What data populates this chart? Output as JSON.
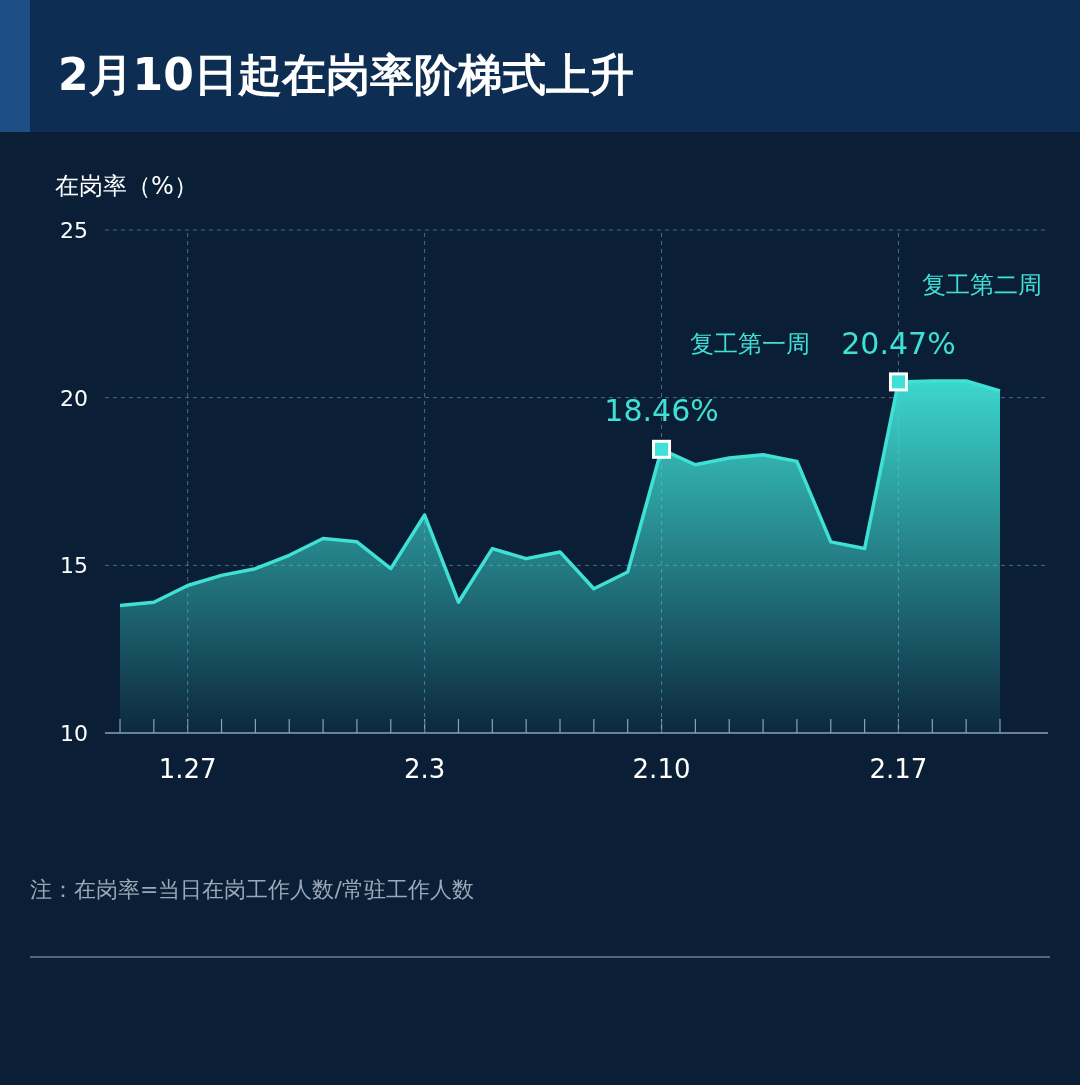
{
  "chart_data": {
    "type": "area",
    "title": "2月10日起在岗率阶梯式上升",
    "ylabel": "在岗率（%）",
    "categories": [
      null,
      null,
      "1.27",
      null,
      null,
      null,
      null,
      null,
      null,
      "2.3",
      null,
      null,
      null,
      null,
      null,
      null,
      "2.10",
      null,
      null,
      null,
      null,
      null,
      null,
      "2.17",
      null,
      null,
      null
    ],
    "series": [
      {
        "color": "#3fe0d5",
        "values": [
          13.8,
          13.9,
          14.4,
          14.7,
          14.9,
          15.3,
          15.8,
          15.7,
          14.9,
          16.5,
          13.9,
          15.5,
          15.2,
          15.4,
          14.3,
          14.8,
          18.46,
          18.0,
          18.2,
          18.3,
          18.1,
          15.7,
          15.5,
          20.47,
          20.5,
          20.5,
          20.2
        ],
        "value_labels": [
          null,
          null,
          null,
          null,
          null,
          null,
          null,
          null,
          null,
          null,
          null,
          null,
          null,
          null,
          null,
          null,
          "18.46%",
          null,
          null,
          null,
          null,
          null,
          null,
          "20.47%",
          null,
          null,
          null
        ]
      }
    ],
    "ylim": [
      10,
      25
    ],
    "yticks": [
      10,
      15,
      20,
      25
    ],
    "grid": true,
    "annotations": [
      "复工第一周",
      "复工第二周",
      "注：在岗率=当日在岗工作人数/常驻工作人数"
    ]
  }
}
